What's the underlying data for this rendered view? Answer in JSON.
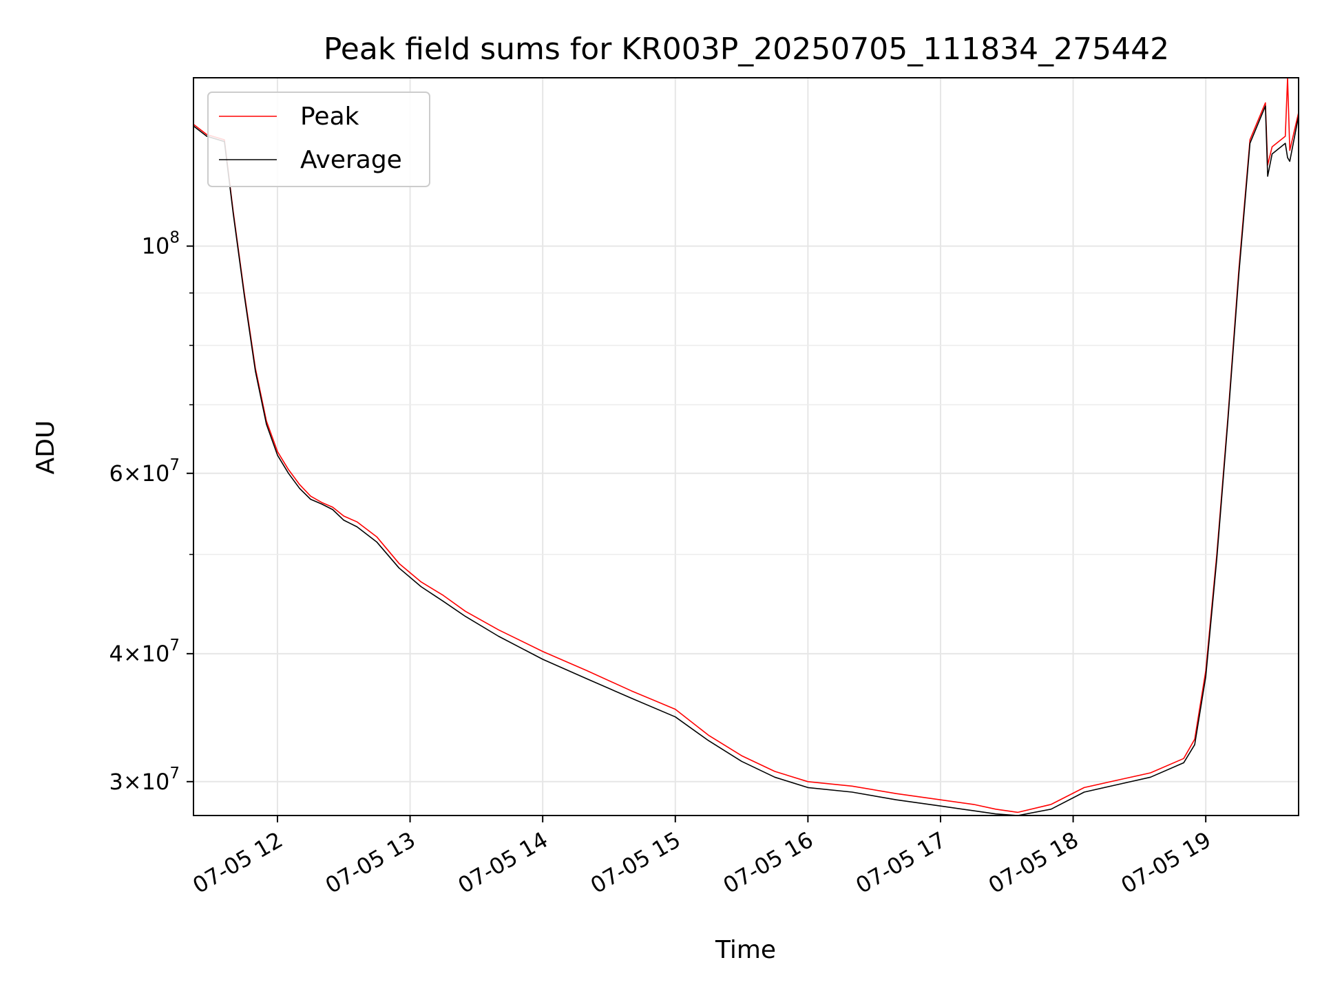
{
  "chart_data": {
    "type": "line",
    "title": "Peak field sums for KR003P_20250705_111834_275442",
    "xlabel": "Time",
    "ylabel": "ADU",
    "y_scale": "log",
    "grid": true,
    "legend_position": "upper-left",
    "xlim": [
      "07-05 11:22",
      "07-05 19:42"
    ],
    "ylim": [
      27800000,
      146000000
    ],
    "x_ticks": [
      "07-05 12",
      "07-05 13",
      "07-05 14",
      "07-05 15",
      "07-05 16",
      "07-05 17",
      "07-05 18",
      "07-05 19"
    ],
    "y_ticks": [
      {
        "value": 30000000,
        "mantissa": "3",
        "exponent": "7"
      },
      {
        "value": 40000000,
        "mantissa": "4",
        "exponent": "7"
      },
      {
        "value": 60000000,
        "mantissa": "6",
        "exponent": "7"
      },
      {
        "value": 100000000,
        "mantissa": "",
        "exponent": "8"
      }
    ],
    "y_minor_ticks": [
      50000000,
      70000000,
      80000000,
      90000000
    ],
    "series": [
      {
        "name": "Peak",
        "color": "#ff0000",
        "x": [
          "07-05 11:22",
          "07-05 11:28",
          "07-05 11:36",
          "07-05 11:40",
          "07-05 11:45",
          "07-05 11:50",
          "07-05 11:55",
          "07-05 12:00",
          "07-05 12:05",
          "07-05 12:10",
          "07-05 12:15",
          "07-05 12:20",
          "07-05 12:25",
          "07-05 12:30",
          "07-05 12:36",
          "07-05 12:45",
          "07-05 12:55",
          "07-05 13:05",
          "07-05 13:15",
          "07-05 13:25",
          "07-05 13:40",
          "07-05 14:00",
          "07-05 14:20",
          "07-05 14:40",
          "07-05 15:00",
          "07-05 15:15",
          "07-05 15:30",
          "07-05 15:45",
          "07-05 16:00",
          "07-05 16:20",
          "07-05 16:40",
          "07-05 17:00",
          "07-05 17:15",
          "07-05 17:25",
          "07-05 17:35",
          "07-05 17:50",
          "07-05 18:05",
          "07-05 18:20",
          "07-05 18:35",
          "07-05 18:50",
          "07-05 18:55",
          "07-05 19:00",
          "07-05 19:05",
          "07-05 19:10",
          "07-05 19:15",
          "07-05 19:20",
          "07-05 19:27",
          "07-05 19:28",
          "07-05 19:30",
          "07-05 19:36",
          "07-05 19:37",
          "07-05 19:38",
          "07-05 19:42"
        ],
        "y": [
          131500000,
          128500000,
          127000000,
          108000000,
          90000000,
          76000000,
          67500000,
          63000000,
          60500000,
          58500000,
          57000000,
          56200000,
          55600000,
          54500000,
          53800000,
          52000000,
          49000000,
          47000000,
          45600000,
          44000000,
          42200000,
          40200000,
          38500000,
          36800000,
          35300000,
          33300000,
          31800000,
          30700000,
          30000000,
          29700000,
          29200000,
          28800000,
          28500000,
          28200000,
          28000000,
          28500000,
          29600000,
          30100000,
          30600000,
          31600000,
          33000000,
          38500000,
          50000000,
          68000000,
          95000000,
          127000000,
          138000000,
          120000000,
          125000000,
          128000000,
          146000000,
          124000000,
          135000000
        ]
      },
      {
        "name": "Average",
        "color": "#000000",
        "x": [
          "07-05 11:22",
          "07-05 11:28",
          "07-05 11:36",
          "07-05 11:40",
          "07-05 11:45",
          "07-05 11:50",
          "07-05 11:55",
          "07-05 12:00",
          "07-05 12:05",
          "07-05 12:10",
          "07-05 12:15",
          "07-05 12:20",
          "07-05 12:25",
          "07-05 12:30",
          "07-05 12:36",
          "07-05 12:45",
          "07-05 12:55",
          "07-05 13:05",
          "07-05 13:15",
          "07-05 13:25",
          "07-05 13:40",
          "07-05 14:00",
          "07-05 14:20",
          "07-05 14:40",
          "07-05 15:00",
          "07-05 15:15",
          "07-05 15:30",
          "07-05 15:45",
          "07-05 16:00",
          "07-05 16:20",
          "07-05 16:40",
          "07-05 17:00",
          "07-05 17:15",
          "07-05 17:25",
          "07-05 17:35",
          "07-05 17:50",
          "07-05 18:05",
          "07-05 18:20",
          "07-05 18:35",
          "07-05 18:50",
          "07-05 18:55",
          "07-05 19:00",
          "07-05 19:05",
          "07-05 19:10",
          "07-05 19:15",
          "07-05 19:20",
          "07-05 19:27",
          "07-05 19:28",
          "07-05 19:30",
          "07-05 19:36",
          "07-05 19:37",
          "07-05 19:38",
          "07-05 19:42"
        ],
        "y": [
          131000000,
          128000000,
          126500000,
          107500000,
          89500000,
          75500000,
          67000000,
          62500000,
          60000000,
          58000000,
          56600000,
          56000000,
          55300000,
          54000000,
          53200000,
          51400000,
          48500000,
          46500000,
          45000000,
          43500000,
          41600000,
          39500000,
          37800000,
          36200000,
          34700000,
          32900000,
          31400000,
          30300000,
          29600000,
          29300000,
          28800000,
          28400000,
          28100000,
          27900000,
          27800000,
          28200000,
          29300000,
          29800000,
          30300000,
          31300000,
          32600000,
          38000000,
          49500000,
          67500000,
          94000000,
          126000000,
          137000000,
          117000000,
          123000000,
          126000000,
          122000000,
          121000000,
          134000000
        ]
      }
    ]
  }
}
